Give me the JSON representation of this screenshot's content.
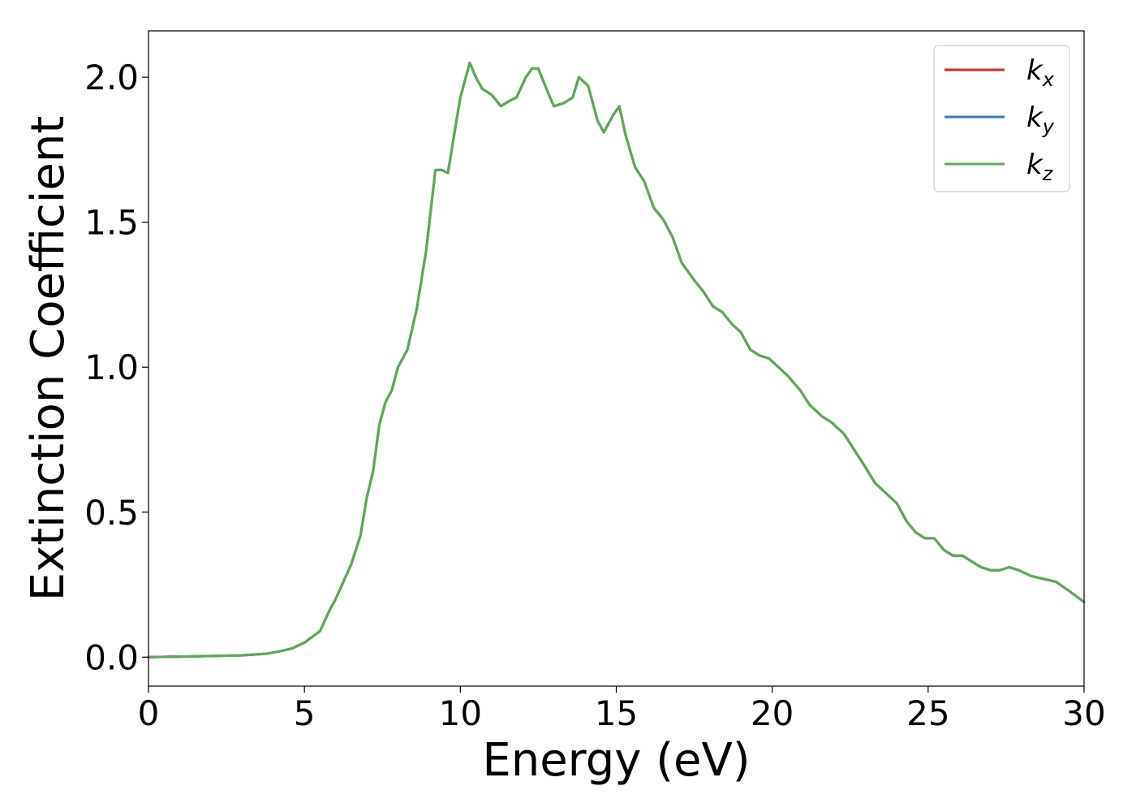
{
  "chart_data": {
    "type": "line",
    "title": "",
    "xlabel": "Energy (eV)",
    "ylabel": "Extinction Coefficient",
    "xlim": [
      0,
      30
    ],
    "ylim": [
      -0.1,
      2.16
    ],
    "xticks": [
      0,
      5,
      10,
      15,
      20,
      25,
      30
    ],
    "yticks": [
      0.0,
      0.5,
      1.0,
      1.5,
      2.0
    ],
    "xtick_labels": [
      "0",
      "5",
      "10",
      "15",
      "20",
      "25",
      "30"
    ],
    "ytick_labels": [
      "0.0",
      "0.5",
      "1.0",
      "1.5",
      "2.0"
    ],
    "grid": false,
    "legend_position": "top-right",
    "colors": {
      "kx": "#d62728",
      "ky": "#3b78b6",
      "kz": "#5aac52"
    },
    "x": [
      0,
      1,
      2,
      3,
      3.8,
      4.2,
      4.6,
      5.0,
      5.5,
      5.8,
      6.0,
      6.5,
      6.8,
      7.0,
      7.2,
      7.4,
      7.6,
      7.8,
      8.0,
      8.3,
      8.6,
      8.9,
      9.2,
      9.4,
      9.6,
      9.8,
      10.0,
      10.3,
      10.5,
      10.7,
      11.0,
      11.3,
      11.6,
      11.8,
      12.1,
      12.3,
      12.5,
      12.8,
      13.0,
      13.3,
      13.6,
      13.8,
      14.1,
      14.4,
      14.6,
      14.9,
      15.1,
      15.3,
      15.6,
      15.9,
      16.2,
      16.5,
      16.8,
      17.1,
      17.5,
      17.8,
      18.1,
      18.4,
      18.7,
      19.0,
      19.3,
      19.6,
      19.9,
      20.2,
      20.5,
      20.9,
      21.2,
      21.6,
      21.9,
      22.3,
      22.6,
      22.9,
      23.3,
      23.7,
      24.0,
      24.3,
      24.6,
      24.9,
      25.2,
      25.5,
      25.8,
      26.1,
      26.4,
      26.7,
      27.0,
      27.3,
      27.6,
      27.9,
      28.3,
      28.7,
      29.1,
      29.5,
      30.0
    ],
    "series": [
      {
        "name": "k_x",
        "label_base": "k",
        "label_sub": "x",
        "values": [
          0.0,
          0.002,
          0.004,
          0.006,
          0.012,
          0.02,
          0.03,
          0.05,
          0.09,
          0.16,
          0.2,
          0.32,
          0.42,
          0.55,
          0.64,
          0.8,
          0.88,
          0.92,
          1.0,
          1.06,
          1.2,
          1.4,
          1.68,
          1.68,
          1.67,
          1.8,
          1.93,
          2.05,
          2.0,
          1.96,
          1.94,
          1.9,
          1.92,
          1.93,
          2.0,
          2.03,
          2.03,
          1.95,
          1.9,
          1.91,
          1.93,
          2.0,
          1.97,
          1.85,
          1.81,
          1.87,
          1.9,
          1.8,
          1.69,
          1.64,
          1.55,
          1.51,
          1.45,
          1.36,
          1.3,
          1.26,
          1.21,
          1.19,
          1.15,
          1.12,
          1.06,
          1.04,
          1.03,
          1.0,
          0.97,
          0.92,
          0.87,
          0.83,
          0.81,
          0.77,
          0.72,
          0.67,
          0.6,
          0.56,
          0.53,
          0.47,
          0.43,
          0.41,
          0.41,
          0.37,
          0.35,
          0.35,
          0.33,
          0.31,
          0.3,
          0.3,
          0.31,
          0.3,
          0.28,
          0.27,
          0.26,
          0.23,
          0.19
        ]
      },
      {
        "name": "k_y",
        "label_base": "k",
        "label_sub": "y",
        "values": [
          0.0,
          0.002,
          0.004,
          0.006,
          0.012,
          0.02,
          0.03,
          0.05,
          0.09,
          0.16,
          0.2,
          0.32,
          0.42,
          0.55,
          0.64,
          0.8,
          0.88,
          0.92,
          1.0,
          1.06,
          1.2,
          1.4,
          1.68,
          1.68,
          1.67,
          1.8,
          1.93,
          2.05,
          2.0,
          1.96,
          1.94,
          1.9,
          1.92,
          1.93,
          2.0,
          2.03,
          2.03,
          1.95,
          1.9,
          1.91,
          1.93,
          2.0,
          1.97,
          1.85,
          1.81,
          1.87,
          1.9,
          1.8,
          1.69,
          1.64,
          1.55,
          1.51,
          1.45,
          1.36,
          1.3,
          1.26,
          1.21,
          1.19,
          1.15,
          1.12,
          1.06,
          1.04,
          1.03,
          1.0,
          0.97,
          0.92,
          0.87,
          0.83,
          0.81,
          0.77,
          0.72,
          0.67,
          0.6,
          0.56,
          0.53,
          0.47,
          0.43,
          0.41,
          0.41,
          0.37,
          0.35,
          0.35,
          0.33,
          0.31,
          0.3,
          0.3,
          0.31,
          0.3,
          0.28,
          0.27,
          0.26,
          0.23,
          0.19
        ]
      },
      {
        "name": "k_z",
        "label_base": "k",
        "label_sub": "z",
        "values": [
          0.0,
          0.002,
          0.004,
          0.006,
          0.012,
          0.02,
          0.03,
          0.05,
          0.09,
          0.16,
          0.2,
          0.32,
          0.42,
          0.55,
          0.64,
          0.8,
          0.88,
          0.92,
          1.0,
          1.06,
          1.2,
          1.4,
          1.68,
          1.68,
          1.67,
          1.8,
          1.93,
          2.05,
          2.0,
          1.96,
          1.94,
          1.9,
          1.92,
          1.93,
          2.0,
          2.03,
          2.03,
          1.95,
          1.9,
          1.91,
          1.93,
          2.0,
          1.97,
          1.85,
          1.81,
          1.87,
          1.9,
          1.8,
          1.69,
          1.64,
          1.55,
          1.51,
          1.45,
          1.36,
          1.3,
          1.26,
          1.21,
          1.19,
          1.15,
          1.12,
          1.06,
          1.04,
          1.03,
          1.0,
          0.97,
          0.92,
          0.87,
          0.83,
          0.81,
          0.77,
          0.72,
          0.67,
          0.6,
          0.56,
          0.53,
          0.47,
          0.43,
          0.41,
          0.41,
          0.37,
          0.35,
          0.35,
          0.33,
          0.31,
          0.3,
          0.3,
          0.31,
          0.3,
          0.28,
          0.27,
          0.26,
          0.23,
          0.19
        ]
      }
    ]
  }
}
